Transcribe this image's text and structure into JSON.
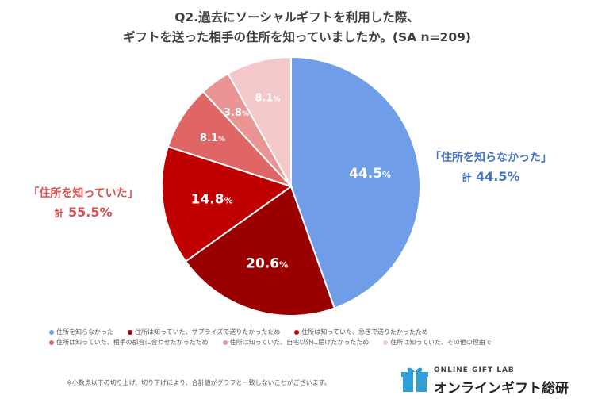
{
  "title": {
    "line1": "Q2.過去にソーシャルギフトを利用した際、",
    "line2": "ギフトを送った相手の住所を知っていましたか。(SA n=209)"
  },
  "chart_data": {
    "type": "pie",
    "title": "Q2.過去にソーシャルギフトを利用した際、ギフトを送った相手の住所を知っていましたか。(SA n=209)",
    "start_angle_deg": 0,
    "direction": "clockwise",
    "slices": [
      {
        "name": "住所を知らなかった",
        "value": 44.5,
        "label": "44.5",
        "color": "#6f9de8",
        "label_color": "#ffffff"
      },
      {
        "name": "住所は知っていた、サプライズで送りたかったため",
        "value": 20.6,
        "label": "20.6",
        "color": "#9b0000",
        "label_color": "#ffffff"
      },
      {
        "name": "住所は知っていた、急ぎで送りたかったため",
        "value": 14.8,
        "label": "14.8",
        "color": "#c00000",
        "label_color": "#ffffff"
      },
      {
        "name": "住所は知っていた、相手の都合に合わせたかったため",
        "value": 8.1,
        "label": "8.1",
        "color": "#e06666",
        "label_color": "#ffffff"
      },
      {
        "name": "住所は知っていた、自宅以外に届けたかったため",
        "value": 3.8,
        "label": "3.8",
        "color": "#eb9494",
        "label_color": "#ffffff"
      },
      {
        "name": "住所は知っていた、その他の理由で",
        "value": 8.1,
        "label": "8.1",
        "color": "#f4c8c8",
        "label_color": "#ffffff"
      }
    ],
    "percent_sign": "%",
    "legend_position": "bottom",
    "annotations": {
      "unknown": {
        "label": "「住所を知らなかった」",
        "kei": "計",
        "total": "44.5%"
      },
      "known": {
        "label": "「住所を知っていた」",
        "kei": "計",
        "total": "55.5%"
      }
    }
  },
  "legend": {
    "row1": [
      {
        "label": "住所を知らなかった",
        "color": "#6f9de8"
      },
      {
        "label": "住所は知っていた、サプライズで送りたかったため",
        "color": "#9b0000"
      },
      {
        "label": "住所は知っていた、急ぎで送りたかったため",
        "color": "#c00000"
      }
    ],
    "row2": [
      {
        "label": "住所は知っていた、相手の都合に合わせたかったため",
        "color": "#e06666"
      },
      {
        "label": "住所は知っていた、自宅以外に届けたかったため",
        "color": "#eb9494"
      },
      {
        "label": "住所は知っていた、その他の理由で",
        "color": "#f4c8c8"
      }
    ]
  },
  "footnote": "※小数点以下の切り上げ、切り下げにより、合計値がグラフと一致しないことがございます。",
  "logo": {
    "brand_en": "ONLINE GIFT LAB",
    "brand_jp": "オンラインギフト総研",
    "icon": "gift-box-icon",
    "accent": "#2f9fd8"
  }
}
